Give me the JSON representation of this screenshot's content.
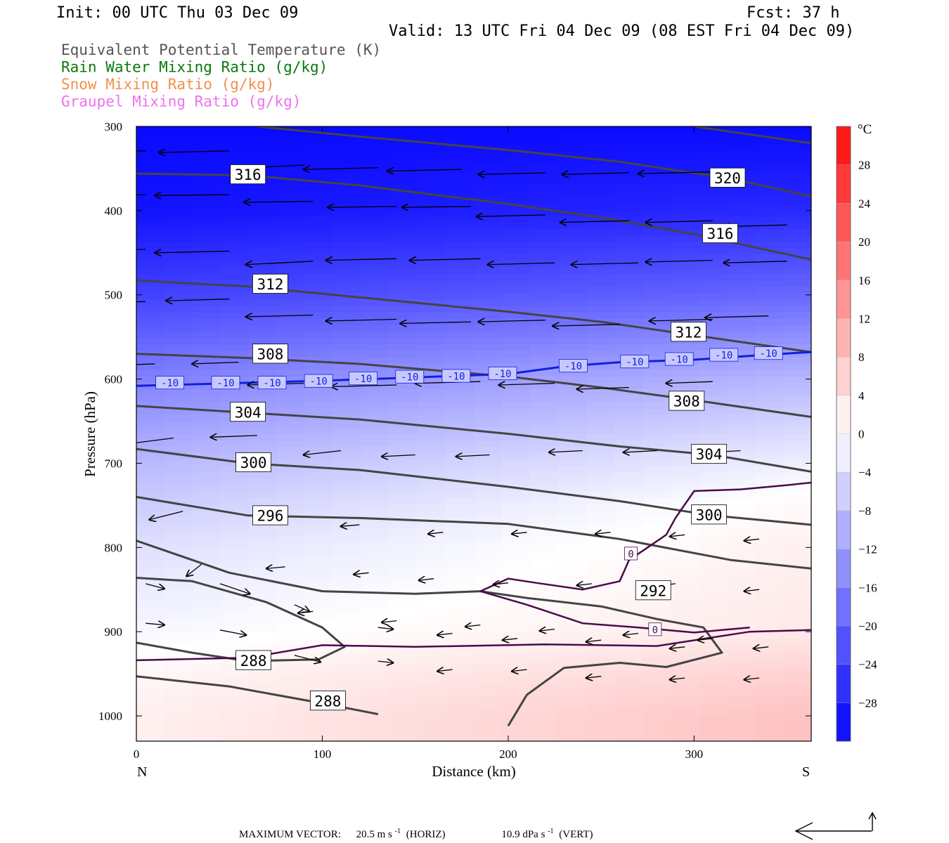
{
  "header": {
    "init": "Init: 00 UTC Thu 03 Dec 09",
    "fcst": "Fcst:   37 h",
    "valid": "Valid: 13 UTC Fri 04 Dec 09 (08 EST Fri 04 Dec 09)",
    "fields": [
      {
        "label": "Equivalent Potential Temperature (K)",
        "color": "#555555"
      },
      {
        "label": "Rain Water Mixing Ratio (g/kg)",
        "color": "#0a7a0a"
      },
      {
        "label": "Snow Mixing Ratio (g/kg)",
        "color": "#f0904a"
      },
      {
        "label": "Graupel Mixing Ratio (g/kg)",
        "color": "#ee72ee"
      }
    ]
  },
  "footer": {
    "max_vector_label": "MAXIMUM VECTOR:",
    "horiz_value": "20.5 m s",
    "horiz_unit": "(HORIZ)",
    "vert_value": "10.9 dPa s",
    "vert_unit": "(VERT)",
    "exponent": "-1"
  },
  "chart_data": {
    "type": "heatmap",
    "xlabel": "Distance (km)",
    "ylabel": "Pressure (hPa)",
    "xlim": [
      0,
      363
    ],
    "ylim": [
      300,
      1030
    ],
    "x_ticks": [
      0,
      100,
      200,
      300
    ],
    "y_ticks": [
      300,
      400,
      500,
      600,
      700,
      800,
      900,
      1000
    ],
    "x_end_labels": {
      "left": "N",
      "right": "S"
    },
    "colorbar": {
      "unit": "°C",
      "range": [
        -32,
        32
      ],
      "step": 4,
      "tick_labels": [
        "28",
        "24",
        "20",
        "16",
        "12",
        "8",
        "4",
        "0",
        "−4",
        "−8",
        "−12",
        "−16",
        "−20",
        "−24",
        "−28"
      ],
      "tick_values": [
        28,
        24,
        20,
        16,
        12,
        8,
        4,
        0,
        -4,
        -8,
        -12,
        -16,
        -20,
        -24,
        -28
      ]
    },
    "temperature_field": {
      "unit": "°C",
      "profile_at_x0": [
        [
          300,
          -31
        ],
        [
          400,
          -30
        ],
        [
          500,
          -24
        ],
        [
          600,
          -16
        ],
        [
          700,
          -9
        ],
        [
          800,
          -4
        ],
        [
          900,
          -1
        ],
        [
          950,
          1
        ],
        [
          1000,
          2
        ]
      ],
      "profile_at_x363": [
        [
          300,
          -31
        ],
        [
          400,
          -27
        ],
        [
          500,
          -19
        ],
        [
          600,
          -9
        ],
        [
          700,
          -2
        ],
        [
          750,
          1
        ],
        [
          800,
          2
        ],
        [
          900,
          3
        ],
        [
          950,
          6
        ],
        [
          1000,
          8
        ]
      ]
    },
    "theta_e_contours": [
      {
        "level": 288,
        "labels": [
          "288",
          "288"
        ],
        "points": [
          [
            0,
            913
          ],
          [
            30,
            925
          ],
          [
            60,
            935
          ],
          [
            98,
            933
          ],
          [
            112,
            918
          ],
          [
            100,
            895
          ],
          [
            70,
            865
          ],
          [
            30,
            840
          ],
          [
            0,
            836
          ]
        ]
      },
      {
        "level": 288,
        "labels": [],
        "points": [
          [
            0,
            953
          ],
          [
            50,
            965
          ],
          [
            100,
            985
          ],
          [
            130,
            998
          ]
        ]
      },
      {
        "level": 292,
        "labels": [
          "292"
        ],
        "points": [
          [
            200,
            1012
          ],
          [
            210,
            975
          ],
          [
            230,
            943
          ],
          [
            260,
            937
          ],
          [
            285,
            942
          ],
          [
            315,
            925
          ],
          [
            305,
            895
          ],
          [
            280,
            885
          ],
          [
            250,
            870
          ],
          [
            210,
            860
          ],
          [
            185,
            852
          ],
          [
            150,
            855
          ],
          [
            100,
            852
          ],
          [
            50,
            830
          ],
          [
            0,
            792
          ]
        ]
      },
      {
        "level": 296,
        "labels": [
          "296"
        ],
        "points": [
          [
            0,
            740
          ],
          [
            60,
            762
          ],
          [
            120,
            765
          ],
          [
            200,
            772
          ],
          [
            260,
            790
          ],
          [
            320,
            815
          ],
          [
            363,
            825
          ]
        ]
      },
      {
        "level": 300,
        "labels": [
          "300",
          "300"
        ],
        "points": [
          [
            0,
            683
          ],
          [
            60,
            700
          ],
          [
            120,
            708
          ],
          [
            200,
            728
          ],
          [
            260,
            745
          ],
          [
            310,
            762
          ],
          [
            363,
            773
          ]
        ]
      },
      {
        "level": 304,
        "labels": [
          "304",
          "304"
        ],
        "points": [
          [
            0,
            632
          ],
          [
            60,
            640
          ],
          [
            120,
            648
          ],
          [
            200,
            665
          ],
          [
            260,
            680
          ],
          [
            310,
            690
          ],
          [
            363,
            710
          ]
        ]
      },
      {
        "level": 308,
        "labels": [
          "308",
          "308"
        ],
        "points": [
          [
            0,
            570
          ],
          [
            60,
            575
          ],
          [
            120,
            582
          ],
          [
            200,
            597
          ],
          [
            250,
            610
          ],
          [
            300,
            625
          ],
          [
            363,
            645
          ]
        ]
      },
      {
        "level": 312,
        "labels": [
          "312",
          "312"
        ],
        "points": [
          [
            0,
            483
          ],
          [
            60,
            490
          ],
          [
            120,
            503
          ],
          [
            200,
            520
          ],
          [
            250,
            532
          ],
          [
            300,
            548
          ],
          [
            363,
            568
          ]
        ]
      },
      {
        "level": 316,
        "labels": [
          "316",
          "316"
        ],
        "points": [
          [
            0,
            356
          ],
          [
            60,
            358
          ],
          [
            120,
            370
          ],
          [
            200,
            392
          ],
          [
            250,
            408
          ],
          [
            300,
            428
          ],
          [
            363,
            458
          ]
        ]
      },
      {
        "level": 320,
        "labels": [
          "320"
        ],
        "points": [
          [
            65,
            300
          ],
          [
            120,
            312
          ],
          [
            200,
            328
          ],
          [
            260,
            342
          ],
          [
            320,
            362
          ],
          [
            363,
            383
          ]
        ]
      },
      {
        "level": 324,
        "labels": [],
        "points": [
          [
            300,
            300
          ],
          [
            363,
            320
          ]
        ]
      }
    ],
    "isotherm_minus10": {
      "level": -10,
      "label": "-10",
      "points": [
        [
          0,
          608
        ],
        [
          50,
          605
        ],
        [
          100,
          602
        ],
        [
          150,
          598
        ],
        [
          200,
          594
        ],
        [
          230,
          585
        ],
        [
          260,
          580
        ],
        [
          300,
          577
        ],
        [
          340,
          571
        ],
        [
          363,
          568
        ]
      ]
    },
    "isotherm_zero": [
      {
        "level": 0,
        "label": "0",
        "points": [
          [
            0,
            934
          ],
          [
            60,
            931
          ],
          [
            100,
            916
          ],
          [
            150,
            918
          ],
          [
            220,
            915
          ],
          [
            280,
            917
          ],
          [
            330,
            900
          ],
          [
            363,
            898
          ]
        ]
      },
      {
        "level": 0,
        "label": "0",
        "points": [
          [
            185,
            852
          ],
          [
            200,
            837
          ],
          [
            215,
            842
          ],
          [
            240,
            850
          ],
          [
            260,
            840
          ],
          [
            265,
            815
          ],
          [
            275,
            800
          ],
          [
            285,
            785
          ],
          [
            290,
            765
          ],
          [
            300,
            733
          ],
          [
            325,
            731
          ],
          [
            350,
            726
          ],
          [
            363,
            723
          ]
        ]
      },
      {
        "level": 0,
        "label": "0",
        "points": [
          [
            185,
            852
          ],
          [
            210,
            868
          ],
          [
            240,
            890
          ],
          [
            270,
            895
          ],
          [
            300,
            901
          ],
          [
            330,
            895
          ]
        ]
      }
    ],
    "wind_vectors": [
      [
        5,
        329,
        -38,
        0
      ],
      [
        50,
        329,
        -38,
        -2
      ],
      [
        90,
        346,
        -38,
        -4
      ],
      [
        130,
        349,
        -40,
        -2
      ],
      [
        175,
        351,
        -40,
        -2
      ],
      [
        220,
        355,
        -36,
        -2
      ],
      [
        265,
        355,
        -36,
        -2
      ],
      [
        310,
        354,
        -40,
        -2
      ],
      [
        5,
        381,
        -40,
        -1
      ],
      [
        50,
        381,
        -40,
        -1
      ],
      [
        95,
        389,
        -37,
        -1
      ],
      [
        140,
        395,
        -37,
        -1
      ],
      [
        180,
        395,
        -37,
        -1
      ],
      [
        220,
        405,
        -37,
        -2
      ],
      [
        265,
        412,
        -37,
        -2
      ],
      [
        310,
        412,
        -36,
        -2
      ],
      [
        350,
        417,
        -34,
        -2
      ],
      [
        5,
        446,
        -40,
        -1
      ],
      [
        50,
        448,
        -40,
        -2
      ],
      [
        95,
        460,
        -36,
        -4
      ],
      [
        140,
        457,
        -38,
        -2
      ],
      [
        185,
        457,
        -38,
        -2
      ],
      [
        225,
        462,
        -36,
        -2
      ],
      [
        270,
        462,
        -36,
        -2
      ],
      [
        310,
        459,
        -36,
        -2
      ],
      [
        350,
        460,
        -34,
        -2
      ],
      [
        5,
        508,
        -40,
        -2
      ],
      [
        50,
        505,
        -34,
        -2
      ],
      [
        95,
        524,
        -36,
        -2
      ],
      [
        140,
        529,
        -38,
        -2
      ],
      [
        180,
        532,
        -38,
        -2
      ],
      [
        220,
        530,
        -36,
        -2
      ],
      [
        260,
        535,
        -36,
        -2
      ],
      [
        310,
        529,
        -34,
        -2
      ],
      [
        340,
        525,
        -34,
        -2
      ],
      [
        10,
        582,
        -30,
        -2
      ],
      [
        55,
        580,
        -25,
        -2
      ],
      [
        90,
        605,
        -30,
        -2
      ],
      [
        140,
        607,
        -35,
        -2
      ],
      [
        185,
        603,
        -35,
        -2
      ],
      [
        225,
        605,
        -30,
        -2
      ],
      [
        265,
        610,
        -28,
        -2
      ],
      [
        310,
        603,
        -25,
        -2
      ],
      [
        20,
        670,
        -25,
        -7
      ],
      [
        65,
        667,
        -25,
        -2
      ],
      [
        110,
        685,
        -20,
        -5
      ],
      [
        150,
        690,
        -18,
        -2
      ],
      [
        190,
        690,
        -18,
        -2
      ],
      [
        240,
        685,
        -18,
        -2
      ],
      [
        280,
        685,
        -18,
        -2
      ],
      [
        325,
        685,
        -15,
        -2
      ],
      [
        25,
        757,
        -18,
        -10
      ],
      [
        80,
        755,
        -15,
        -4
      ],
      [
        120,
        773,
        -10,
        -2
      ],
      [
        165,
        782,
        -8,
        -2
      ],
      [
        210,
        782,
        -8,
        -2
      ],
      [
        255,
        782,
        -8,
        -2
      ],
      [
        295,
        785,
        -8,
        -2
      ],
      [
        335,
        790,
        -8,
        -2
      ],
      [
        35,
        820,
        -8,
        -14
      ],
      [
        80,
        823,
        -10,
        -2
      ],
      [
        125,
        830,
        -8,
        -2
      ],
      [
        160,
        837,
        -8,
        -2
      ],
      [
        200,
        842,
        -8,
        -2
      ],
      [
        245,
        843,
        -8,
        -2
      ],
      [
        290,
        843,
        -8,
        -2
      ],
      [
        335,
        850,
        -8,
        -2
      ],
      [
        5,
        843,
        10,
        -6
      ],
      [
        45,
        843,
        16,
        -12
      ],
      [
        95,
        876,
        -8,
        -2
      ],
      [
        140,
        887,
        -8,
        -2
      ],
      [
        185,
        892,
        -8,
        -2
      ],
      [
        225,
        897,
        -8,
        -2
      ],
      [
        270,
        902,
        -8,
        -2
      ],
      [
        310,
        908,
        -8,
        -2
      ],
      [
        5,
        890,
        10,
        -2
      ],
      [
        45,
        898,
        14,
        -6
      ],
      [
        85,
        868,
        8,
        -8
      ],
      [
        130,
        895,
        8,
        -2
      ],
      [
        170,
        902,
        -8,
        -2
      ],
      [
        205,
        908,
        -8,
        -2
      ],
      [
        250,
        910,
        -8,
        -2
      ],
      [
        295,
        918,
        -8,
        -2
      ],
      [
        340,
        918,
        -8,
        -2
      ],
      [
        85,
        928,
        14,
        -8
      ],
      [
        130,
        935,
        8,
        -2
      ],
      [
        170,
        945,
        -8,
        -2
      ],
      [
        210,
        945,
        -8,
        -2
      ],
      [
        250,
        953,
        -8,
        -2
      ],
      [
        295,
        955,
        -8,
        -2
      ],
      [
        335,
        955,
        -8,
        -2
      ]
    ]
  }
}
